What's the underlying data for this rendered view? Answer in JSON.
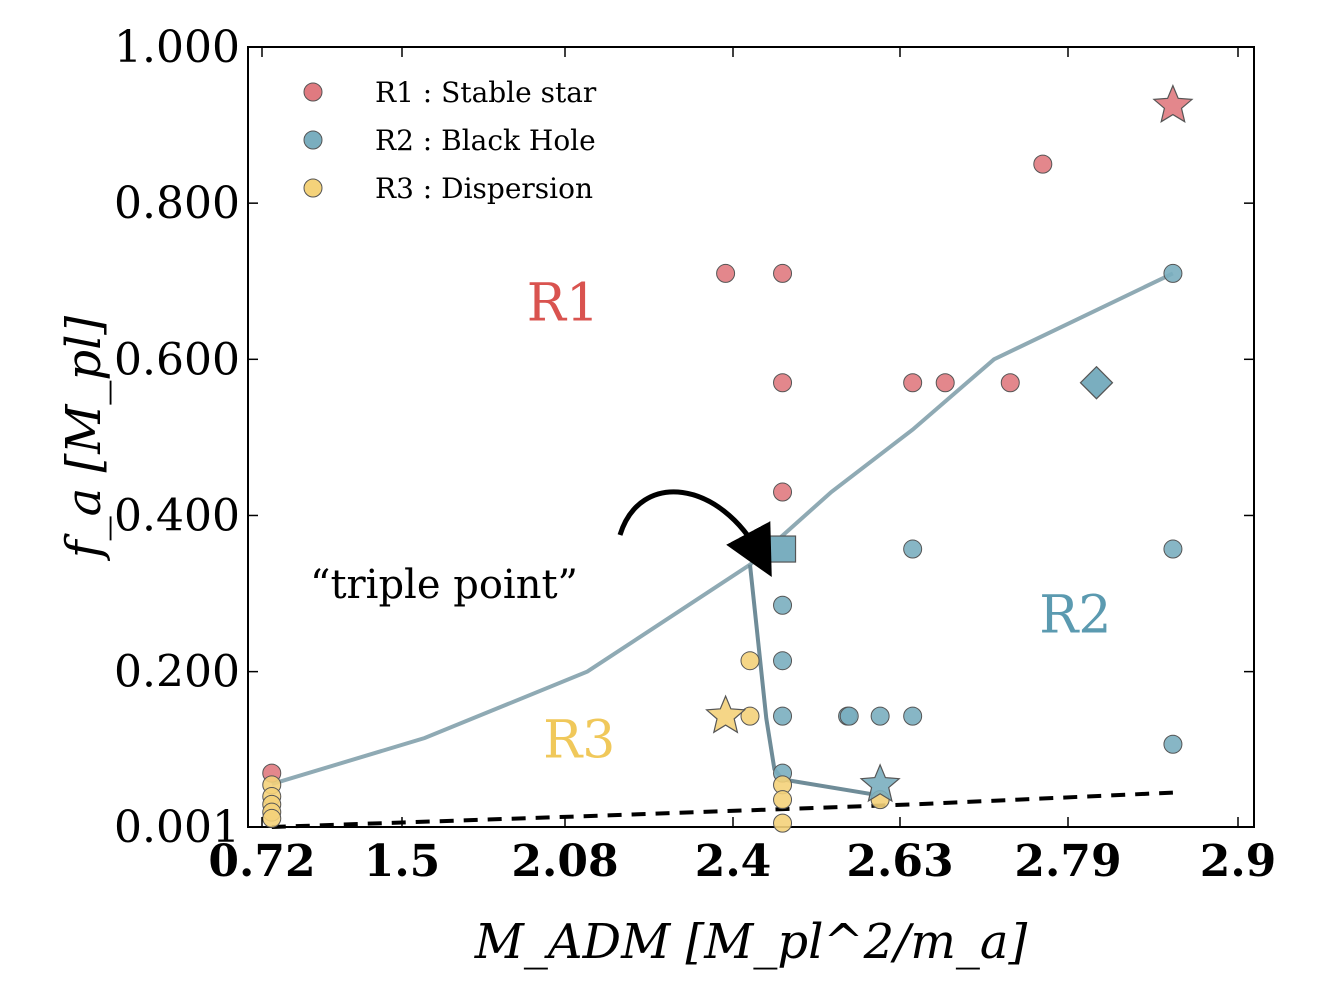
{
  "chart_data": {
    "type": "scatter",
    "title": "",
    "xlabel": "M_ADM [M_pl^2/m_a]",
    "ylabel": "f_a [M_pl]",
    "x_ticks": [
      "0.72",
      "1.5",
      "2.08",
      "2.4",
      "2.63",
      "2.79",
      "2.9"
    ],
    "y_ticks": [
      "0.001",
      "0.200",
      "0.400",
      "0.600",
      "0.800",
      "1.000"
    ],
    "ylim": [
      0.001,
      1.0
    ],
    "x_axis_note": "categorical / non-uniform tick spacing; x given as tick-index coordinate (0 = 0.72 ... 6 = 2.9)",
    "colors": {
      "R1": "#e07a80",
      "R2": "#7aaebf",
      "R3": "#f4d27a",
      "boundary": "#8faab4",
      "boundary_dark": "#6f8c98",
      "region_R1": "#d9534f",
      "region_R2": "#5b9ab0",
      "region_R3": "#f0c85a"
    },
    "legend": [
      {
        "key": "R1",
        "label": "R1 :  Stable star"
      },
      {
        "key": "R2",
        "label": "R2 :  Black Hole"
      },
      {
        "key": "R3",
        "label": "R3 :  Dispersion"
      }
    ],
    "regions": [
      {
        "label": "R1",
        "color_key": "region_R1",
        "x": 1.85,
        "y": 0.65
      },
      {
        "label": "R2",
        "color_key": "region_R2",
        "x": 5.0,
        "y": 0.25
      },
      {
        "label": "R3",
        "color_key": "region_R3",
        "x": 1.95,
        "y": 0.09
      }
    ],
    "annotation": {
      "text": "“triple point”",
      "x": 3.2,
      "y": 0.33
    },
    "series": [
      {
        "name": "R1",
        "marker": "circle",
        "points": [
          [
            0.06,
            0.07
          ],
          [
            2.85,
            0.71
          ],
          [
            3.2,
            0.71
          ],
          [
            3.2,
            0.57
          ],
          [
            3.2,
            0.43
          ],
          [
            4.0,
            0.57
          ],
          [
            4.2,
            0.57
          ],
          [
            4.6,
            0.57
          ],
          [
            4.8,
            0.85
          ]
        ]
      },
      {
        "name": "R2",
        "marker": "circle",
        "points": [
          [
            3.2,
            0.285
          ],
          [
            3.2,
            0.214
          ],
          [
            3.2,
            0.143
          ],
          [
            3.2,
            0.07
          ],
          [
            3.6,
            0.143
          ],
          [
            3.61,
            0.143
          ],
          [
            3.8,
            0.143
          ],
          [
            4.0,
            0.143
          ],
          [
            4.0,
            0.357
          ],
          [
            5.6,
            0.71
          ],
          [
            5.6,
            0.357
          ],
          [
            5.6,
            0.107
          ]
        ]
      },
      {
        "name": "R3",
        "marker": "circle",
        "points": [
          [
            0.06,
            0.055
          ],
          [
            0.06,
            0.04
          ],
          [
            0.06,
            0.03
          ],
          [
            0.06,
            0.02
          ],
          [
            0.06,
            0.012
          ],
          [
            3.0,
            0.214
          ],
          [
            3.0,
            0.143
          ],
          [
            3.2,
            0.055
          ],
          [
            3.2,
            0.036
          ],
          [
            3.2,
            0.006
          ],
          [
            3.8,
            0.036
          ]
        ]
      }
    ],
    "special_markers": [
      {
        "shape": "star",
        "color_key": "R1",
        "x": 5.6,
        "y": 0.925
      },
      {
        "shape": "diamond",
        "color_key": "R2",
        "x": 5.13,
        "y": 0.57
      },
      {
        "shape": "square",
        "color_key": "R2",
        "x": 3.2,
        "y": 0.357
      },
      {
        "shape": "star",
        "color_key": "R2",
        "x": 3.8,
        "y": 0.055
      },
      {
        "shape": "star",
        "color_key": "R3",
        "x": 2.85,
        "y": 0.143
      }
    ],
    "boundaries": [
      {
        "name": "R1-R2/R3 boundary",
        "style": "solid",
        "color_key": "boundary",
        "points": [
          [
            0.06,
            0.056
          ],
          [
            1.0,
            0.115
          ],
          [
            2.0,
            0.2
          ],
          [
            3.0,
            0.337
          ],
          [
            3.5,
            0.43
          ],
          [
            4.0,
            0.51
          ],
          [
            4.5,
            0.6
          ],
          [
            5.0,
            0.65
          ],
          [
            5.6,
            0.71
          ]
        ]
      },
      {
        "name": "R2-R3 boundary",
        "style": "solid",
        "color_key": "boundary_dark",
        "points": [
          [
            3.0,
            0.337
          ],
          [
            3.1,
            0.14
          ],
          [
            3.15,
            0.075
          ],
          [
            3.2,
            0.062
          ],
          [
            3.75,
            0.043
          ]
        ]
      },
      {
        "name": "lower limit",
        "style": "dashed",
        "color_key": "dark",
        "points": [
          [
            0.06,
            0.001
          ],
          [
            2.0,
            0.015
          ],
          [
            4.0,
            0.03
          ],
          [
            5.6,
            0.045
          ]
        ]
      }
    ]
  }
}
